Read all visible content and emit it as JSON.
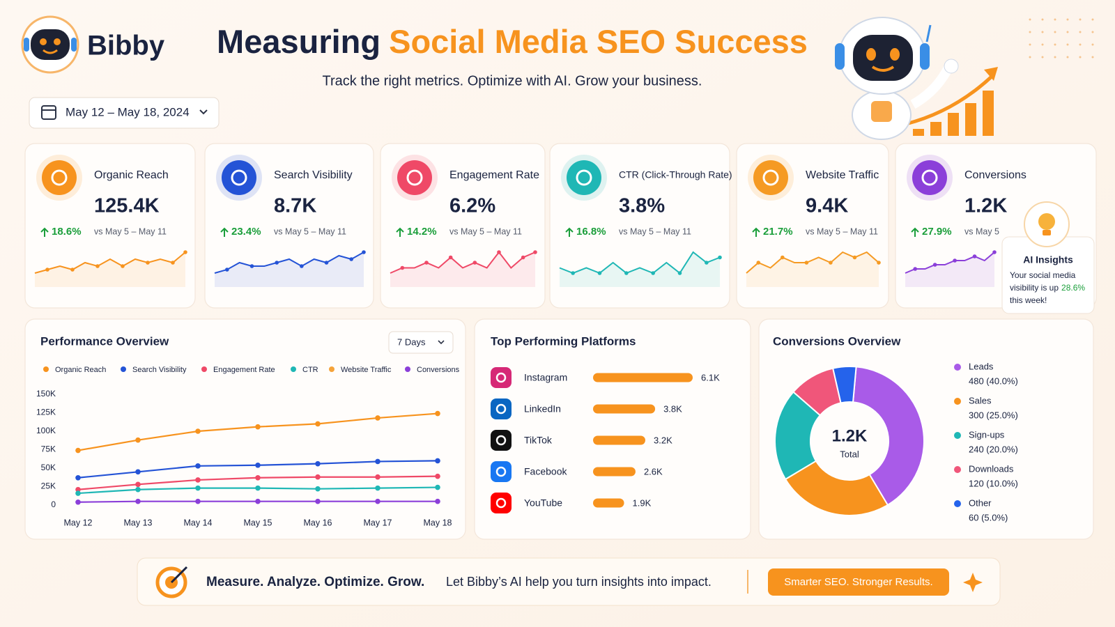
{
  "header": {
    "brand": "Bibby",
    "title_start": "Measuring",
    "title_highlight": "Social Media SEO Success",
    "subtitle": "Track the right metrics. Optimize with AI. Grow your business.",
    "date_range": "May 12 – May 18, 2024"
  },
  "kpis": [
    {
      "label": "Organic Reach",
      "value": "125.4K",
      "change": "18.6%",
      "comparison": "vs May 5 – May 11",
      "color": "#f7931e",
      "sparkline": [
        3,
        4,
        5,
        4,
        6,
        5,
        7,
        5,
        7,
        6,
        7,
        6,
        9
      ]
    },
    {
      "label": "Search Visibility",
      "value": "8.7K",
      "change": "23.4%",
      "comparison": "vs May 5 – May 11",
      "color": "#2453d6",
      "sparkline": [
        3,
        4,
        6,
        5,
        5,
        6,
        7,
        5,
        7,
        6,
        8,
        7,
        9
      ]
    },
    {
      "label": "Engagement Rate",
      "value": "6.2%",
      "change": "14.2%",
      "comparison": "vs May 5 – May 11",
      "color": "#ef4967",
      "sparkline": [
        4,
        5,
        5,
        6,
        5,
        7,
        5,
        6,
        5,
        8,
        5,
        7,
        8
      ]
    },
    {
      "label": "CTR (Click-Through Rate)",
      "value": "3.8%",
      "change": "16.8%",
      "comparison": "vs May 5 – May 11",
      "color": "#1fb7b5",
      "sparkline": [
        5,
        4,
        5,
        4,
        6,
        4,
        5,
        4,
        6,
        4,
        8,
        6,
        7
      ]
    },
    {
      "label": "Website Traffic",
      "value": "9.4K",
      "change": "21.7%",
      "comparison": "vs May 5 – May 11",
      "color": "#f59a23",
      "sparkline": [
        3,
        5,
        4,
        6,
        5,
        5,
        6,
        5,
        7,
        6,
        7,
        5
      ]
    },
    {
      "label": "Conversions",
      "value": "1.2K",
      "change": "27.9%",
      "comparison": "vs May 5",
      "color": "#8b3fd9",
      "sparkline": [
        3,
        4,
        4,
        5,
        5,
        6,
        6,
        7,
        6,
        8
      ]
    }
  ],
  "ai_insights": {
    "title": "AI Insights",
    "lines": [
      "Your social media",
      "visibility is up"
    ],
    "highlight": "28.6%",
    "end": "this week!"
  },
  "performance_overview": {
    "type": "line",
    "title": "Performance Overview",
    "period": "7 Days",
    "categories": [
      "May 12",
      "May 13",
      "May 14",
      "May 15",
      "May 16",
      "May 17",
      "May 18"
    ],
    "ylim": [
      0,
      150000
    ],
    "yticks": [
      0,
      {
        "value": 25000,
        "label": "25K"
      },
      {
        "value": 50000,
        "label": "50K"
      },
      {
        "value": 75000,
        "label": "75K"
      },
      {
        "value": 100000,
        "label": "100K"
      },
      {
        "value": 125000,
        "label": "125K"
      },
      {
        "value": 150000,
        "label": "150K"
      }
    ],
    "series": [
      {
        "name": "Organic Reach",
        "color": "#f7931e",
        "values": [
          74000,
          88000,
          100000,
          106000,
          110000,
          118000,
          124000
        ]
      },
      {
        "name": "Search Visibility",
        "color": "#2453d6",
        "values": [
          37000,
          45000,
          53000,
          54000,
          56000,
          59000,
          60000
        ]
      },
      {
        "name": "Engagement Rate",
        "color": "#ef4967",
        "values": [
          21000,
          28000,
          34000,
          37000,
          38000,
          38000,
          39000
        ]
      },
      {
        "name": "CTR",
        "color": "#1fb7b5",
        "values": [
          16000,
          21000,
          23000,
          23000,
          22000,
          23000,
          24000
        ]
      },
      {
        "name": "Website Traffic",
        "color": "#f5a33a",
        "values": [
          null,
          null,
          null,
          null,
          null,
          null,
          null
        ]
      },
      {
        "name": "Conversions",
        "color": "#8b3fd9",
        "values": [
          4000,
          5000,
          5000,
          5000,
          5000,
          5000,
          5000
        ]
      }
    ]
  },
  "platforms": {
    "type": "bar",
    "title": "Top Performing Platforms",
    "categories": [
      "Instagram",
      "LinkedIn",
      "TikTok",
      "Facebook",
      "YouTube"
    ],
    "values": [
      6100,
      3800,
      3200,
      2600,
      1900
    ],
    "value_labels": [
      "6.1K",
      "3.8K",
      "3.2K",
      "2.6K",
      "1.9K"
    ],
    "color": "#f7931e"
  },
  "conversions": {
    "type": "pie",
    "title": "Conversions Overview",
    "total": "1.2K",
    "total_label": "Total",
    "categories": [
      "Leads",
      "Sales",
      "Sign-ups",
      "Downloads",
      "Other"
    ],
    "values": [
      480,
      300,
      240,
      120,
      60
    ],
    "value_labels": [
      "480 (40.0%)",
      "300 (25.0%)",
      "240 (20.0%)",
      "120 (10.0%)",
      "60 (5.0%)"
    ],
    "colors": [
      "#a95be8",
      "#f7931e",
      "#1fb7b5",
      "#f0567a",
      "#2563eb"
    ]
  },
  "footer": {
    "headline": "Measure. Analyze. Optimize. Grow.",
    "message": "Let Bibby’s AI help you turn insights into impact.",
    "button": "Smarter SEO. Stronger Results."
  }
}
